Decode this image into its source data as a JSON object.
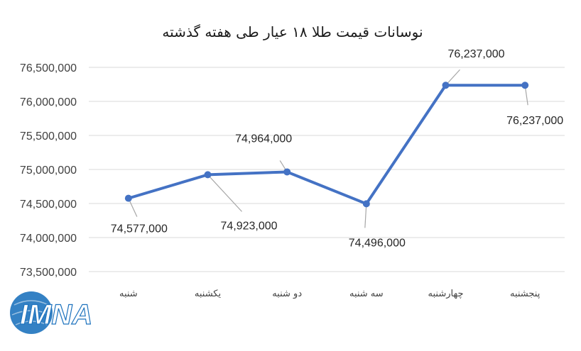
{
  "chart_data": {
    "type": "line",
    "title": "نوسانات قیمت طلا ۱۸ عیار طی هفته گذشته",
    "xlabel": "",
    "ylabel": "",
    "categories": [
      "شنبه",
      "یکشنبه",
      "دو شنبه",
      "سه شنبه",
      "چهارشنبه",
      "پنجشنبه"
    ],
    "series": [
      {
        "values": [
          74577000,
          74923000,
          74964000,
          74496000,
          76237000,
          76237000
        ]
      }
    ],
    "data_labels": [
      "74,577,000",
      "74,923,000",
      "74,964,000",
      "74,496,000",
      "76,237,000",
      "76,237,000"
    ],
    "y_ticks": [
      "73,500,000",
      "74,000,000",
      "74,500,000",
      "75,000,000",
      "75,500,000",
      "76,000,000",
      "76,500,000"
    ],
    "ylim": [
      73500000,
      76500000
    ],
    "grid": true,
    "legend": "none",
    "line_color": "#4472C4",
    "grid_color": "#D9D9D9"
  },
  "logo": {
    "text": "IMNA",
    "color": "#1E73BE"
  }
}
